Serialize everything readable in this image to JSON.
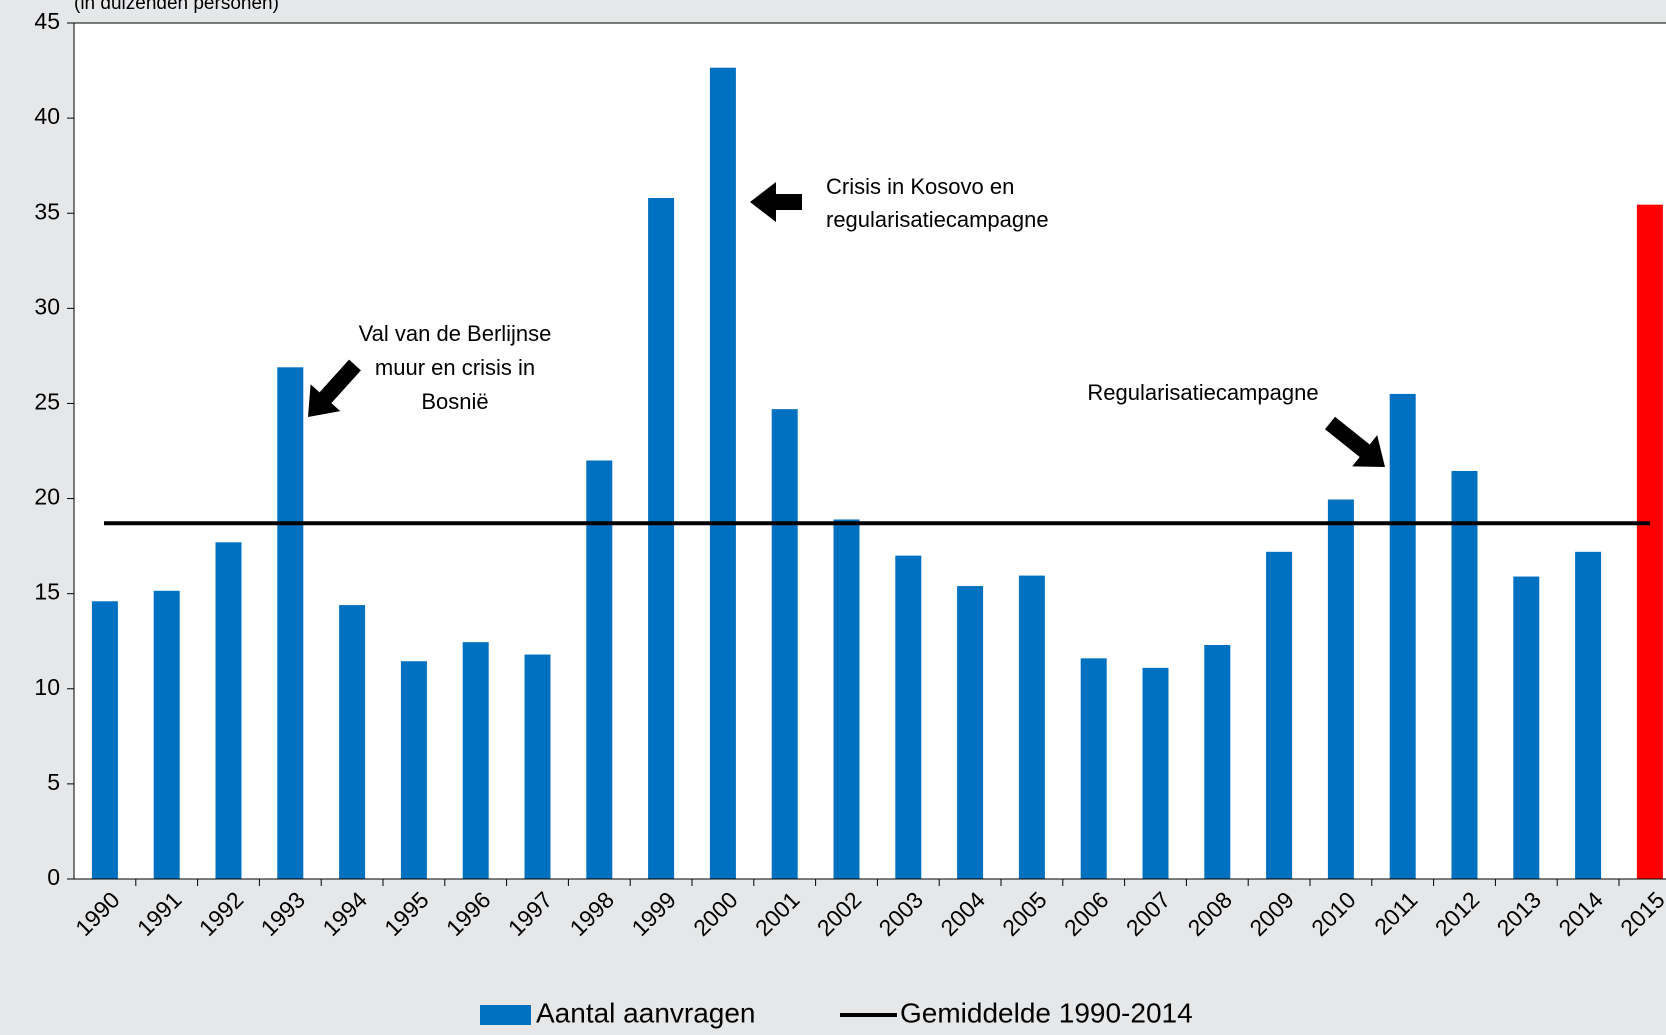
{
  "chart_data": {
    "type": "bar",
    "subtitle": "(in duizenden personen)",
    "categories": [
      "1990",
      "1991",
      "1992",
      "1993",
      "1994",
      "1995",
      "1996",
      "1997",
      "1998",
      "1999",
      "2000",
      "2001",
      "2002",
      "2003",
      "2004",
      "2005",
      "2006",
      "2007",
      "2008",
      "2009",
      "2010",
      "2011",
      "2012",
      "2013",
      "2014",
      "2015"
    ],
    "series": [
      {
        "name": "Aantal aanvragen",
        "color": "#0070c0",
        "colors": [
          "#0070c0",
          "#0070c0",
          "#0070c0",
          "#0070c0",
          "#0070c0",
          "#0070c0",
          "#0070c0",
          "#0070c0",
          "#0070c0",
          "#0070c0",
          "#0070c0",
          "#0070c0",
          "#0070c0",
          "#0070c0",
          "#0070c0",
          "#0070c0",
          "#0070c0",
          "#0070c0",
          "#0070c0",
          "#0070c0",
          "#0070c0",
          "#0070c0",
          "#0070c0",
          "#0070c0",
          "#0070c0",
          "#ff0000"
        ],
        "values": [
          14.6,
          15.15,
          17.7,
          26.9,
          14.4,
          11.45,
          12.45,
          11.8,
          22.0,
          35.8,
          42.65,
          24.7,
          18.9,
          17.0,
          15.4,
          15.95,
          11.6,
          11.1,
          12.3,
          17.2,
          19.95,
          25.5,
          21.45,
          15.9,
          17.2,
          35.45
        ]
      }
    ],
    "average": {
      "name": "Gemiddelde 1990-2014",
      "value": 18.7,
      "color": "#000000"
    },
    "ylim": [
      0,
      45
    ],
    "yticks": [
      0,
      5,
      10,
      15,
      20,
      25,
      30,
      35,
      40,
      45
    ],
    "annotations": [
      {
        "lines": [
          "Val van de Berlijnse",
          "muur en crisis in",
          "Bosnië"
        ]
      },
      {
        "lines": [
          "Crisis in Kosovo en",
          "regularisatiecampagne"
        ]
      },
      {
        "lines": [
          "Regularisatiecampagne"
        ]
      }
    ]
  }
}
